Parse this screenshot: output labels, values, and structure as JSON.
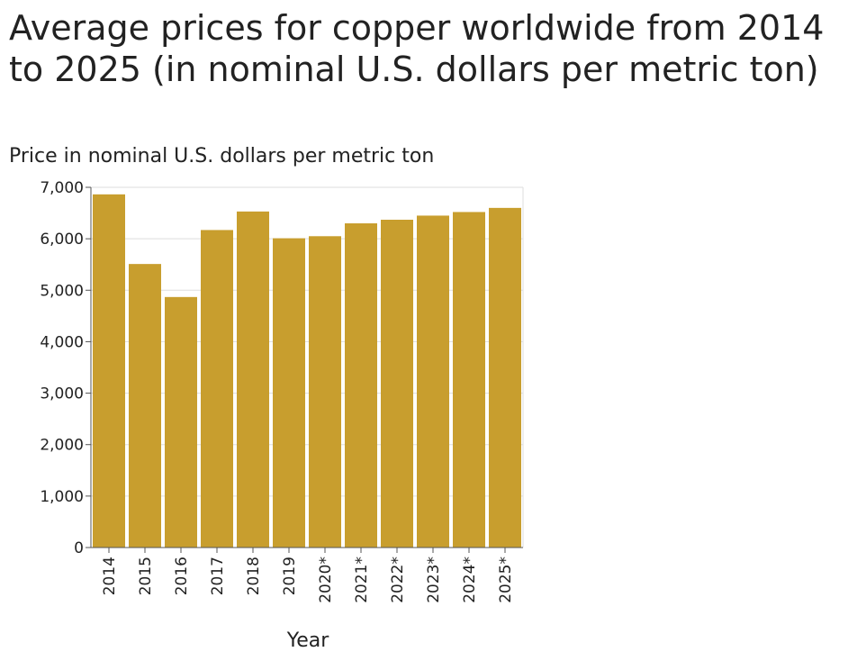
{
  "chart_data": {
    "type": "bar",
    "title": "Average prices for copper worldwide from 2014 to 2025 (in nominal U.S. dollars per metric ton)",
    "ylabel": "Price in nominal U.S. dollars per metric ton",
    "xlabel": "Year",
    "categories": [
      "2014",
      "2015",
      "2016",
      "2017",
      "2018",
      "2019",
      "2020*",
      "2021*",
      "2022*",
      "2023*",
      "2024*",
      "2025*"
    ],
    "values": [
      6863,
      5510,
      4868,
      6170,
      6530,
      6010,
      6050,
      6300,
      6370,
      6450,
      6520,
      6600
    ],
    "ylim": [
      0,
      7000
    ],
    "yticks": [
      0,
      1000,
      2000,
      3000,
      4000,
      5000,
      6000,
      7000
    ],
    "ytick_labels": [
      "0",
      "1,000",
      "2,000",
      "3,000",
      "4,000",
      "5,000",
      "6,000",
      "7,000"
    ],
    "grid": true,
    "bar_color": "#c89e2e",
    "grid_color": "#dddddd",
    "axis_color": "#555555"
  }
}
